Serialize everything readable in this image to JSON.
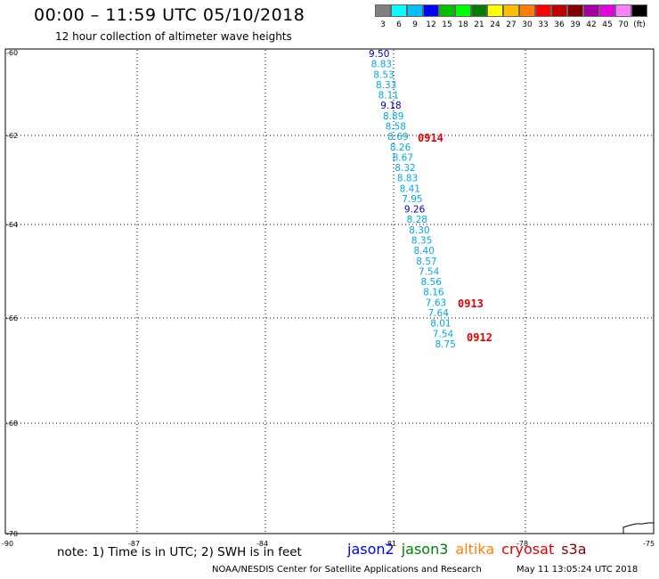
{
  "title": "00:00 – 11:59 UTC 05/10/2018",
  "subtitle": "12 hour collection of altimeter wave heights",
  "scale": {
    "colors": [
      "#808080",
      "#00ffff",
      "#00bfff",
      "#0000ff",
      "#00c000",
      "#00ff00",
      "#008000",
      "#ffff00",
      "#ffbf00",
      "#ff8000",
      "#ff0000",
      "#c00000",
      "#800000",
      "#a000a0",
      "#e000e0",
      "#ff80ff",
      "#000000"
    ],
    "labels": [
      "3",
      "6",
      "9",
      "12",
      "15",
      "18",
      "21",
      "24",
      "27",
      "30",
      "33",
      "36",
      "39",
      "42",
      "45",
      "70",
      "(ft)"
    ]
  },
  "axes": {
    "y_labels": [
      "-60",
      "-62",
      "-64",
      "-66",
      "-68",
      "-70"
    ],
    "x_labels": [
      "-90",
      "-87",
      "-84",
      "-81",
      "-78",
      "-75"
    ]
  },
  "observations": [
    {
      "value": "9.50",
      "color": "#0000c0"
    },
    {
      "value": "8.83",
      "color": "#00a8e0"
    },
    {
      "value": "8.53",
      "color": "#00a8e0"
    },
    {
      "value": "8.33",
      "color": "#00a8e0"
    },
    {
      "value": "8.11",
      "color": "#00a8e0"
    },
    {
      "value": "9.18",
      "color": "#0000c0"
    },
    {
      "value": "8.89",
      "color": "#00a8e0"
    },
    {
      "value": "8.58",
      "color": "#00a8e0"
    },
    {
      "value": "8.69",
      "color": "#00a8e0"
    },
    {
      "value": "8.26",
      "color": "#00a8e0"
    },
    {
      "value": "8.67",
      "color": "#00a8e0"
    },
    {
      "value": "8.32",
      "color": "#00a8e0"
    },
    {
      "value": "8.83",
      "color": "#00a8e0"
    },
    {
      "value": "8.41",
      "color": "#00a8e0"
    },
    {
      "value": "7.95",
      "color": "#00a8e0"
    },
    {
      "value": "9.26",
      "color": "#0000c0"
    },
    {
      "value": "8.28",
      "color": "#00a8e0"
    },
    {
      "value": "8.30",
      "color": "#00a8e0"
    },
    {
      "value": "8.35",
      "color": "#00a8e0"
    },
    {
      "value": "8.40",
      "color": "#00a8e0"
    },
    {
      "value": "8.57",
      "color": "#00a8e0"
    },
    {
      "value": "7.54",
      "color": "#00a8e0"
    },
    {
      "value": "8.56",
      "color": "#00a8e0"
    },
    {
      "value": "8.16",
      "color": "#00a8e0"
    },
    {
      "value": "7.63",
      "color": "#00a8e0"
    },
    {
      "value": "7.64",
      "color": "#00a8e0"
    },
    {
      "value": "8.01",
      "color": "#00a8e0"
    },
    {
      "value": "7.54",
      "color": "#00a8e0"
    },
    {
      "value": "8.75",
      "color": "#00a8e0"
    }
  ],
  "pass_labels": [
    "0914",
    "0913",
    "0912"
  ],
  "note": "note: 1) Time is in UTC; 2) SWH is in feet",
  "satellites": [
    {
      "name": "jason2",
      "color": "#0000e0"
    },
    {
      "name": "jason3",
      "color": "#008000"
    },
    {
      "name": "altika",
      "color": "#ff8000"
    },
    {
      "name": "cryosat",
      "color": "#e00000"
    },
    {
      "name": "s3a",
      "color": "#800000"
    }
  ],
  "credit": "NOAA/NESDIS Center for Satellite Applications and Research",
  "timestamp": "May 11 13:05:24 UTC 2018"
}
